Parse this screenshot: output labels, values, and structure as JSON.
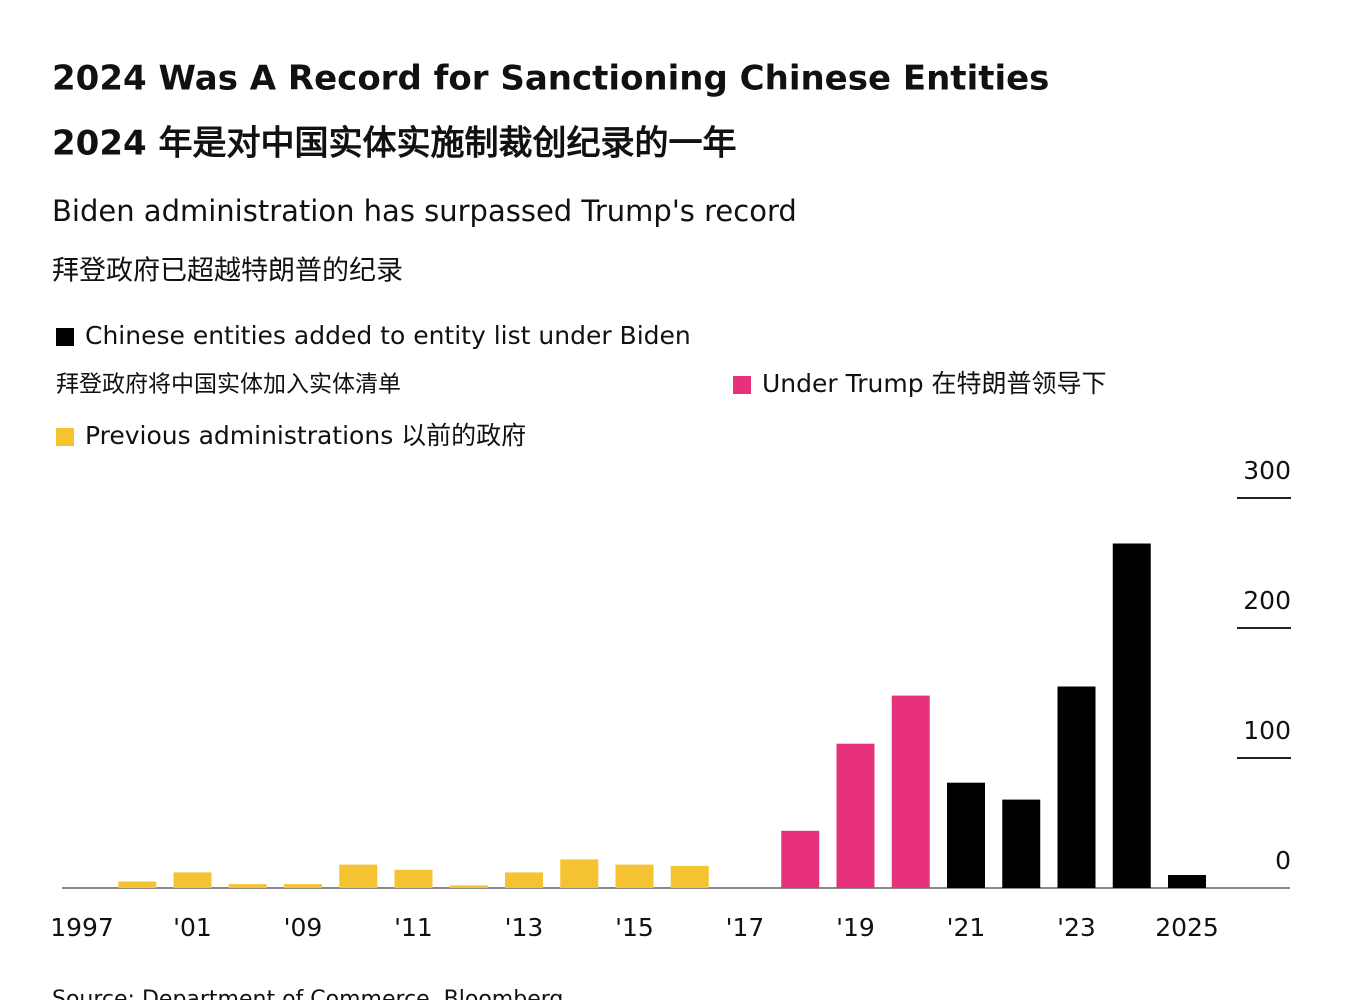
{
  "chart_data": {
    "type": "bar",
    "title": "2024 Was A Record for Sanctioning Chinese Entities",
    "title_zh": "2024 年是对中国实体实施制裁创纪录的一年",
    "subtitle": "Biden administration has surpassed Trump's record",
    "subtitle_zh": "拜登政府已超越特朗普的纪录",
    "categories": [
      "1997",
      null,
      "'01",
      null,
      "'09",
      null,
      "'11",
      null,
      "'13",
      null,
      "'15",
      null,
      "'17",
      null,
      "'19",
      null,
      "'21",
      null,
      "'23",
      null,
      "2025"
    ],
    "series": [
      {
        "name": "Chinese entities added to entity list under Biden",
        "name_zh": "拜登政府将中国实体加入实体清单",
        "color": "#000000",
        "values": [
          null,
          null,
          null,
          null,
          null,
          null,
          null,
          null,
          null,
          null,
          null,
          null,
          null,
          null,
          null,
          null,
          81,
          68,
          155,
          265,
          10
        ]
      },
      {
        "name": "Under Trump  在特朗普领导下",
        "color": "#e8317c",
        "values": [
          null,
          null,
          null,
          null,
          null,
          null,
          null,
          null,
          null,
          null,
          null,
          null,
          0,
          44,
          111,
          148,
          null,
          null,
          null,
          null,
          null
        ]
      },
      {
        "name": "Previous administrations  以前的政府",
        "color": "#f5c332",
        "values": [
          0,
          5,
          12,
          3,
          3,
          18,
          14,
          2,
          12,
          22,
          18,
          17,
          null,
          null,
          null,
          null,
          null,
          null,
          null,
          null,
          null
        ]
      }
    ],
    "ylim": [
      0,
      300
    ],
    "yticks": [
      0,
      100,
      200,
      300
    ],
    "source": "Source: Department of Commerce, Bloomberg"
  }
}
